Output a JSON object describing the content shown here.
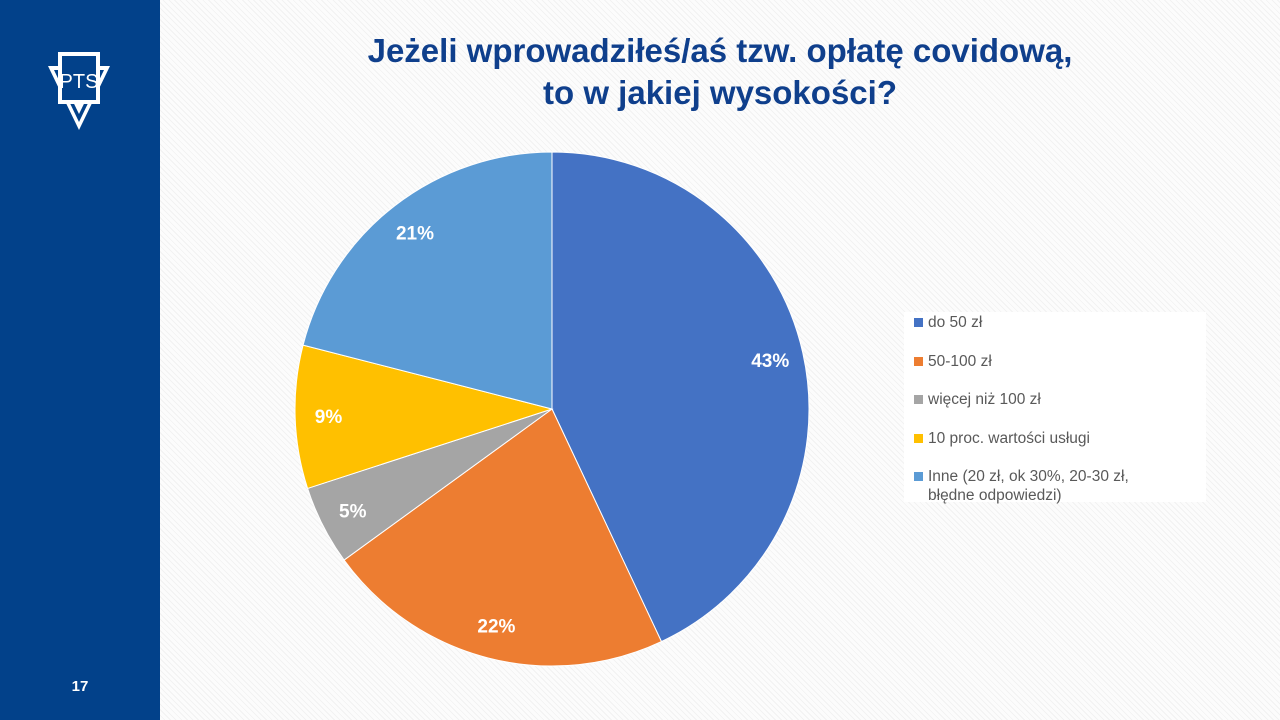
{
  "slide": {
    "page_number": "17",
    "logo_text": "PTS",
    "title_line1": "Jeżeli wprowadziłeś/aś tzw. opłatę covidową,",
    "title_line2": "to w jakiej wysokości?"
  },
  "colors": {
    "sidebar": "#02418a",
    "title": "#0f3f8c"
  },
  "chart_data": {
    "type": "pie",
    "title": "Jeżeli wprowadziłeś/aś tzw. opłatę covidową, to w jakiej wysokości?",
    "categories": [
      "do 50 zł",
      "50-100 zł",
      "więcej niż 100 zł",
      "10 proc. wartości usługi",
      "Inne (20 zł, ok 30%, 20-30 zł, błędne odpowiedzi)"
    ],
    "values": [
      43,
      22,
      5,
      9,
      21
    ],
    "labels": [
      "43%",
      "22%",
      "5%",
      "9%",
      "21%"
    ],
    "colors": [
      "#4472c4",
      "#ed7d31",
      "#a5a5a5",
      "#ffc000",
      "#5b9bd5"
    ],
    "legend_position": "right",
    "legend_lines": [
      [
        "do 50 zł"
      ],
      [
        "50-100 zł"
      ],
      [
        "więcej niż 100 zł"
      ],
      [
        "10 proc. wartości usługi"
      ],
      [
        "Inne (20 zł, ok 30%, 20-30 zł,",
        "błędne odpowiedzi)"
      ]
    ]
  }
}
